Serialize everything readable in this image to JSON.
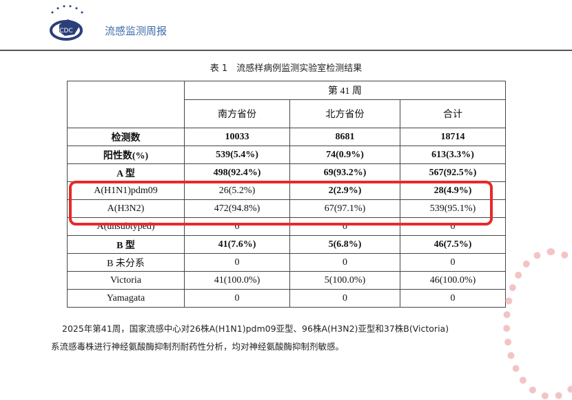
{
  "header": {
    "logo_text": "CDC",
    "title": "流感监测周报"
  },
  "caption": "表 1　流感样病例监测实验室检测结果",
  "table": {
    "week": "第 41 周",
    "columns": [
      "南方省份",
      "北方省份",
      "合计"
    ],
    "rows": [
      {
        "label": "检测数",
        "values": [
          "10033",
          "8681",
          "18714"
        ]
      },
      {
        "label": "阳性数(%)",
        "values": [
          "539(5.4%)",
          "74(0.9%)",
          "613(3.3%)"
        ]
      },
      {
        "label": "A 型",
        "values": [
          "498(92.4%)",
          "69(93.2%)",
          "567(92.5%)"
        ]
      },
      {
        "label": "A(H1N1)pdm09",
        "values": [
          "26(5.2%)",
          "2(2.9%)",
          "28(4.9%)"
        ]
      },
      {
        "label": "A(H3N2)",
        "values": [
          "472(94.8%)",
          "67(97.1%)",
          "539(95.1%)"
        ]
      },
      {
        "label": "A(unsubtyped)",
        "values": [
          "0",
          "0",
          "0"
        ]
      },
      {
        "label": "B 型",
        "values": [
          "41(7.6%)",
          "5(6.8%)",
          "46(7.5%)"
        ]
      },
      {
        "label": "B 未分系",
        "values": [
          "0",
          "0",
          "0"
        ]
      },
      {
        "label": "Victoria",
        "values": [
          "41(100.0%)",
          "5(100.0%)",
          "46(100.0%)"
        ]
      },
      {
        "label": "Yamagata",
        "values": [
          "0",
          "0",
          "0"
        ]
      }
    ]
  },
  "highlight_color": "#e8282a",
  "paragraph": [
    "2025年第41周，国家流感中心对26株A(H1N1)pdm09亚型、96株A(H3N2)亚型和37株B(Victoria)",
    "系流感毒株进行神经氨酸酶抑制剂耐药性分析，均对神经氨酸酶抑制剂敏感。"
  ]
}
